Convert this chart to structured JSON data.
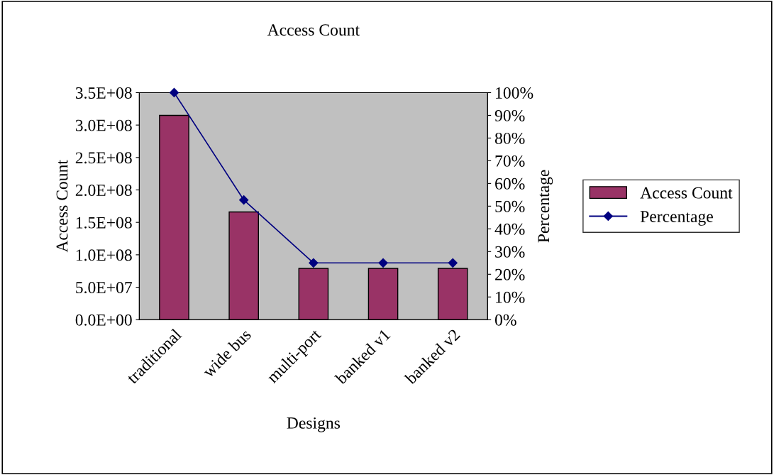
{
  "chart_data": {
    "type": "bar",
    "title": "Access Count",
    "xlabel": "Designs",
    "ylabel": "Access Count",
    "y2label": "Percentage",
    "categories": [
      "traditional",
      "wide bus",
      "multi-port",
      "banked v1",
      "banked v2"
    ],
    "series": [
      {
        "name": "Access Count",
        "color": "#993366",
        "values": [
          315000000,
          166000000,
          79000000,
          79000000,
          79000000
        ]
      },
      {
        "name": "Percentage",
        "type": "line",
        "axis": "y2",
        "color": "#000080",
        "marker": "diamond",
        "values": [
          100,
          52.7,
          25,
          25,
          25
        ]
      }
    ],
    "ylim": [
      0,
      350000000
    ],
    "yticks": [
      {
        "value": 0,
        "label": "0.0E+00"
      },
      {
        "value": 50000000,
        "label": "5.0E+07"
      },
      {
        "value": 100000000,
        "label": "1.0E+08"
      },
      {
        "value": 150000000,
        "label": "1.5E+08"
      },
      {
        "value": 200000000,
        "label": "2.0E+08"
      },
      {
        "value": 250000000,
        "label": "2.5E+08"
      },
      {
        "value": 300000000,
        "label": "3.0E+08"
      },
      {
        "value": 350000000,
        "label": "3.5E+08"
      }
    ],
    "y2lim": [
      0,
      100
    ],
    "y2ticks": [
      {
        "value": 0,
        "label": "0%"
      },
      {
        "value": 10,
        "label": "10%"
      },
      {
        "value": 20,
        "label": "20%"
      },
      {
        "value": 30,
        "label": "30%"
      },
      {
        "value": 40,
        "label": "40%"
      },
      {
        "value": 50,
        "label": "50%"
      },
      {
        "value": 60,
        "label": "60%"
      },
      {
        "value": 70,
        "label": "70%"
      },
      {
        "value": 80,
        "label": "80%"
      },
      {
        "value": 90,
        "label": "90%"
      },
      {
        "value": 100,
        "label": "100%"
      }
    ],
    "grid": false,
    "legend": "right"
  }
}
